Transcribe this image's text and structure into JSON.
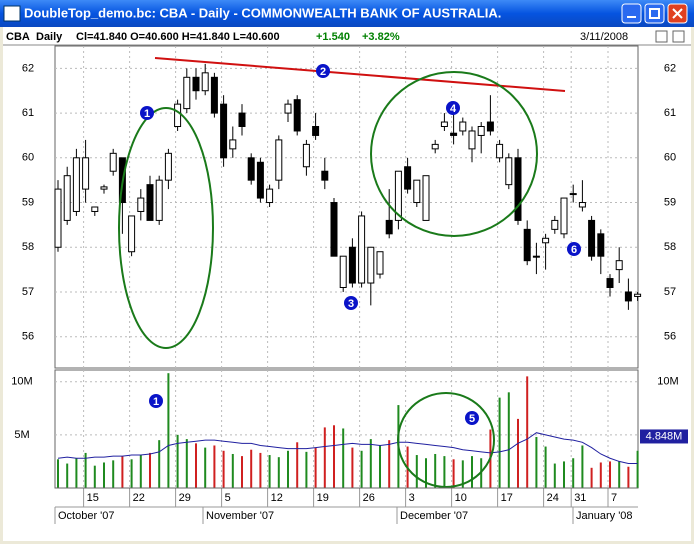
{
  "window": {
    "title": "DoubleTop_demo.bc: CBA - Daily - COMMONWEALTH BANK OF AUSTRALIA."
  },
  "header": {
    "symbol": "CBA",
    "period": "Daily",
    "quote": "Cl=41.840 O=40.600 H=41.840 L=40.600",
    "change": "+1.540",
    "change_pct": "+3.82%",
    "date": "3/11/2008"
  },
  "chart_data": {
    "type": "candlestick",
    "categories": [
      null,
      null,
      null,
      "15",
      null,
      null,
      null,
      null,
      "22",
      null,
      null,
      null,
      null,
      "29",
      null,
      null,
      null,
      null,
      "5",
      null,
      null,
      null,
      null,
      "12",
      null,
      null,
      null,
      null,
      "19",
      null,
      null,
      null,
      null,
      "26",
      null,
      null,
      null,
      null,
      "3",
      null,
      null,
      null,
      null,
      "10",
      null,
      null,
      null,
      null,
      "17",
      null,
      null,
      null,
      null,
      "24",
      null,
      null,
      "31",
      null,
      null,
      null,
      "7",
      null,
      null,
      null
    ],
    "months": [
      "October '07",
      "November '07",
      "December '07",
      "January '08"
    ],
    "open": [
      58.0,
      58.6,
      58.8,
      59.3,
      58.8,
      59.3,
      59.7,
      60.0,
      57.9,
      58.8,
      59.4,
      58.6,
      59.5,
      60.7,
      61.1,
      61.8,
      61.5,
      61.8,
      61.2,
      60.2,
      61.0,
      60.0,
      59.9,
      59.0,
      59.5,
      61.0,
      61.3,
      59.8,
      60.7,
      59.7,
      59.0,
      57.1,
      58.0,
      57.2,
      57.2,
      57.4,
      58.6,
      58.6,
      59.8,
      59.0,
      58.6,
      60.2,
      60.7,
      60.55,
      60.6,
      60.2,
      60.5,
      60.8,
      60.0,
      59.4,
      60.0,
      58.4,
      57.8,
      58.1,
      58.4,
      58.3,
      59.2,
      58.9,
      58.6,
      58.3,
      57.3,
      57.5,
      57.0,
      56.9
    ],
    "high": [
      59.5,
      59.8,
      60.2,
      60.4,
      58.9,
      59.4,
      60.2,
      60.0,
      58.7,
      59.3,
      59.6,
      59.6,
      60.2,
      61.3,
      62.0,
      62.0,
      62.1,
      61.9,
      61.4,
      60.7,
      61.2,
      60.1,
      60.0,
      59.4,
      60.5,
      61.3,
      61.4,
      60.4,
      61.0,
      60.0,
      59.1,
      57.8,
      58.2,
      58.8,
      58.0,
      57.9,
      59.3,
      59.7,
      60.0,
      59.5,
      59.6,
      60.4,
      61.0,
      61.0,
      60.9,
      60.7,
      60.8,
      61.4,
      60.4,
      60.1,
      60.2,
      58.6,
      58.1,
      58.3,
      58.7,
      59.1,
      59.4,
      59.5,
      58.7,
      58.4,
      57.4,
      58.0,
      57.3,
      57.0
    ],
    "low": [
      57.9,
      58.5,
      58.7,
      59.0,
      58.7,
      59.2,
      59.6,
      58.3,
      57.8,
      58.6,
      58.6,
      58.5,
      59.3,
      60.6,
      61.0,
      61.3,
      61.4,
      60.9,
      59.8,
      60.0,
      60.5,
      59.4,
      59.0,
      58.9,
      59.3,
      60.8,
      60.5,
      59.6,
      60.4,
      59.3,
      57.8,
      57.0,
      57.1,
      57.1,
      56.7,
      57.3,
      58.2,
      58.4,
      59.2,
      58.9,
      58.6,
      60.1,
      60.6,
      60.3,
      60.5,
      59.9,
      60.1,
      60.5,
      59.9,
      59.3,
      58.5,
      57.6,
      57.4,
      57.5,
      58.3,
      58.2,
      59.0,
      58.8,
      57.7,
      57.4,
      56.9,
      57.2,
      56.6,
      56.8
    ],
    "close": [
      59.3,
      59.6,
      60.0,
      60.0,
      58.9,
      59.35,
      60.1,
      59.0,
      58.7,
      59.1,
      58.6,
      59.5,
      60.1,
      61.2,
      61.8,
      61.5,
      61.9,
      61.0,
      60.0,
      60.4,
      60.7,
      59.5,
      59.1,
      59.3,
      60.4,
      61.2,
      60.6,
      60.3,
      60.5,
      59.5,
      57.8,
      57.8,
      57.2,
      58.7,
      58.0,
      57.9,
      58.3,
      59.7,
      59.3,
      59.5,
      59.6,
      60.3,
      60.8,
      60.5,
      60.8,
      60.6,
      60.7,
      60.6,
      60.3,
      60.0,
      58.6,
      57.7,
      57.8,
      58.2,
      58.6,
      59.1,
      59.2,
      59.0,
      57.8,
      57.8,
      57.1,
      57.7,
      56.8,
      56.95
    ],
    "ylim": [
      55.3,
      62.5
    ],
    "yticks": [
      56,
      57,
      58,
      59,
      60,
      61,
      62
    ],
    "up_color": "#ffffff",
    "down_color": "#000000",
    "volume": {
      "values": [
        2.7,
        2.3,
        2.8,
        3.3,
        2.1,
        2.4,
        2.6,
        3.0,
        2.7,
        3.1,
        3.3,
        4.5,
        10.8,
        5.0,
        4.6,
        4.2,
        3.8,
        4.0,
        3.5,
        3.2,
        3.0,
        3.6,
        3.3,
        3.1,
        2.9,
        3.5,
        4.3,
        3.4,
        3.8,
        5.7,
        5.9,
        5.6,
        3.8,
        3.5,
        4.6,
        4.0,
        4.5,
        7.8,
        3.9,
        3.1,
        2.8,
        3.2,
        3.0,
        2.7,
        2.6,
        3.0,
        2.8,
        5.5,
        8.5,
        9.0,
        6.5,
        10.5,
        4.8,
        3.9,
        2.3,
        2.5,
        2.8,
        4.0,
        1.9,
        2.4,
        2.5,
        2.5,
        2.0,
        3.5
      ],
      "ma": [
        2.8,
        2.9,
        2.8,
        2.8,
        2.9,
        2.9,
        3.0,
        3.0,
        3.1,
        3.1,
        3.2,
        3.4,
        4.0,
        4.2,
        4.3,
        4.4,
        4.5,
        4.5,
        4.4,
        4.3,
        4.2,
        4.2,
        4.0,
        3.9,
        3.8,
        3.7,
        3.7,
        3.7,
        3.8,
        3.9,
        4.0,
        4.1,
        4.2,
        4.1,
        4.1,
        4.0,
        4.1,
        4.3,
        4.3,
        4.2,
        4.1,
        4.0,
        3.9,
        3.8,
        3.6,
        3.5,
        3.4,
        3.3,
        3.4,
        3.6,
        4.2,
        4.6,
        5.2,
        5.0,
        4.8,
        4.6,
        4.5,
        4.3,
        3.8,
        3.2,
        2.8,
        2.5,
        2.3,
        2.3
      ],
      "ylim": [
        0,
        11.1
      ],
      "yticks": [
        {
          "value": 5,
          "label": "5M"
        },
        {
          "value": 10,
          "label": "10M"
        }
      ],
      "up_color": "#1f8a1f",
      "down_color": "#d02020",
      "ma_color": "#2020a0",
      "marker": {
        "value": 4.848,
        "label": "4.848M"
      }
    },
    "annotations": [
      "1",
      "2",
      "3",
      "4",
      "6"
    ],
    "volume_annotations": [
      "1",
      "5"
    ]
  }
}
